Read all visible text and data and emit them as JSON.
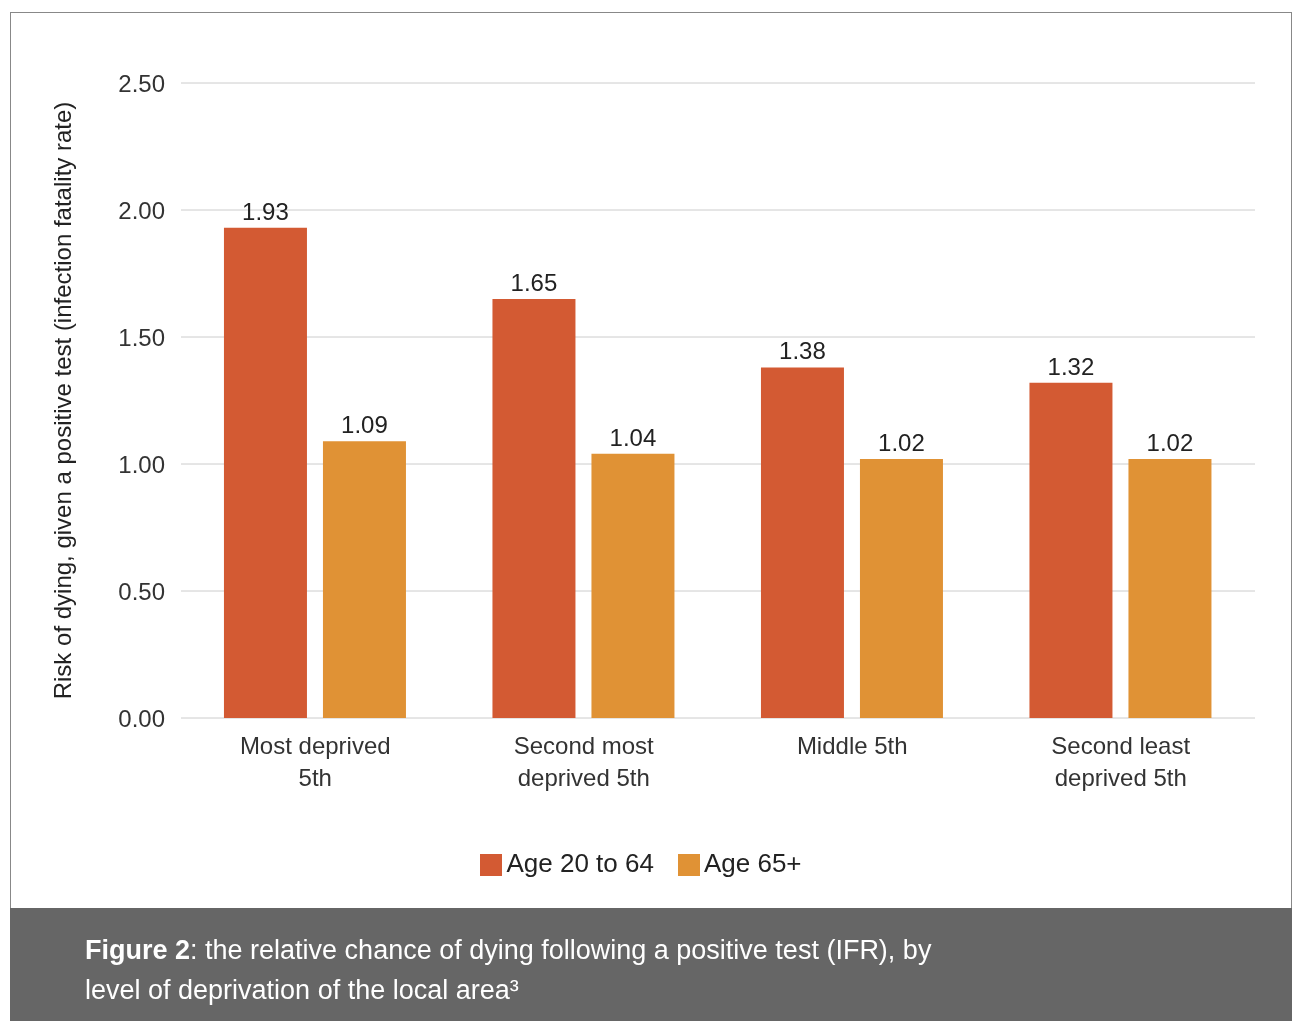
{
  "chart_data": {
    "type": "bar",
    "ylabel": "Risk of dying, given a positive test (infection fatality rate)",
    "categories": [
      "Most deprived 5th",
      "Second most deprived 5th",
      "Middle 5th",
      "Second least deprived 5th"
    ],
    "series": [
      {
        "name": "Age 20 to 64",
        "color": "#d35a33",
        "values": [
          1.93,
          1.65,
          1.38,
          1.32
        ]
      },
      {
        "name": "Age 65+",
        "color": "#e09235",
        "values": [
          1.09,
          1.04,
          1.02,
          1.02
        ]
      }
    ],
    "ylim": [
      0,
      2.5
    ],
    "yticks": [
      {
        "value": 0,
        "label": "0.00"
      },
      {
        "value": 0.5,
        "label": "0.50"
      },
      {
        "value": 1,
        "label": "1.00"
      },
      {
        "value": 1.5,
        "label": "1.50"
      },
      {
        "value": 2,
        "label": "2.00"
      },
      {
        "value": 2.5,
        "label": "2.50"
      }
    ],
    "grid": "y",
    "legend": "bottom",
    "data_labels": true,
    "annotations": [
      "Figure 2: the relative chance of dying following a positive test (IFR), by level of deprivation of the local area³"
    ]
  }
}
